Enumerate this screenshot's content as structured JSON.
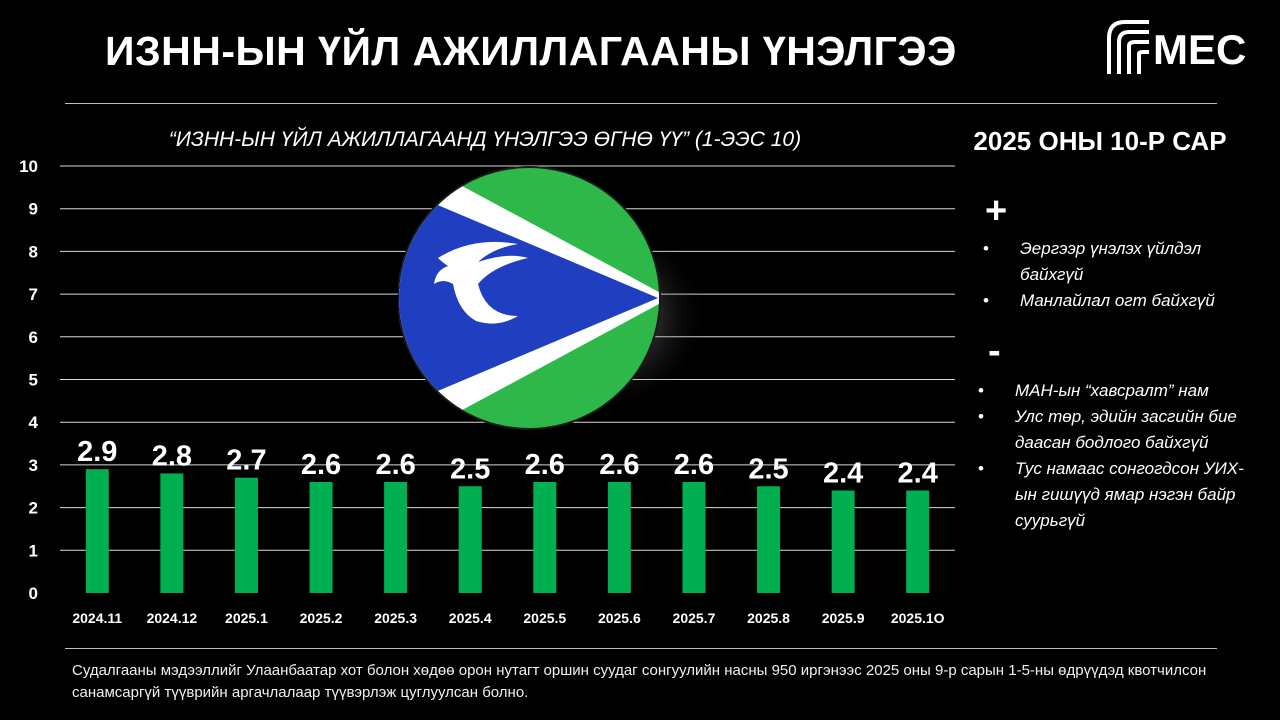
{
  "header": {
    "title": "ИЗНН-ЫН ҮЙЛ АЖИЛЛАГААНЫ ҮНЭЛГЭЭ",
    "logo_text": "MEC"
  },
  "subtitle": "“ИЗНН-ЫН ҮЙЛ АЖИЛЛАГААНД ҮНЭЛГЭЭ ӨГНӨ ҮҮ” (1-ЭЭС 10)",
  "sidebar": {
    "period": "2025 ОНЫ 10-Р САР",
    "plus_sign": "+",
    "plus_items": [
      "Эергээр үнэлэх үйлдэл байхгүй",
      "Манлайлал огт байхгүй"
    ],
    "minus_sign": "-",
    "minus_items": [
      "МАН-ын “хавсралт” нам",
      "Улс төр, эдийн засгийн бие даасан бодлого байхгүй",
      "Тус намаас сонгогдсон УИХ-ын гишүүд ямар нэгэн байр суурьгүй"
    ]
  },
  "footnote": "Судалгааны мэдээллийг Улаанбаатар хот болон хөдөө орон нутагт оршин суудаг сонгуулийн насны 950 иргэнээс 2025 оны 9-р сарын 1-5-ны өдрүүдэд квотчилсон санамсаргүй түүврийн аргачлалаар түүвэрлэж цуглуулсан болно.",
  "colors": {
    "bar": "#00b050",
    "background": "#000000",
    "grid": "#d9d9d9",
    "emblem_green": "#2fb84a",
    "emblem_blue": "#1f3fc0"
  },
  "chart_data": {
    "type": "bar",
    "categories": [
      "2024.11",
      "2024.12",
      "2025.1",
      "2025.2",
      "2025.3",
      "2025.4",
      "2025.5",
      "2025.6",
      "2025.7",
      "2025.8",
      "2025.9",
      "2025.1O"
    ],
    "values": [
      2.9,
      2.8,
      2.7,
      2.6,
      2.6,
      2.5,
      2.6,
      2.6,
      2.6,
      2.5,
      2.4,
      2.4
    ],
    "data_labels": [
      "2.9",
      "2.8",
      "2.7",
      "2.6",
      "2.6",
      "2.5",
      "2.6",
      "2.6",
      "2.6",
      "2.5",
      "2.4",
      "2.4"
    ],
    "y_ticks": [
      "0",
      "1",
      "2",
      "3",
      "4",
      "5",
      "6",
      "7",
      "8",
      "9",
      "10"
    ],
    "ylim": [
      0,
      10
    ],
    "grid": true,
    "legend": "none"
  }
}
